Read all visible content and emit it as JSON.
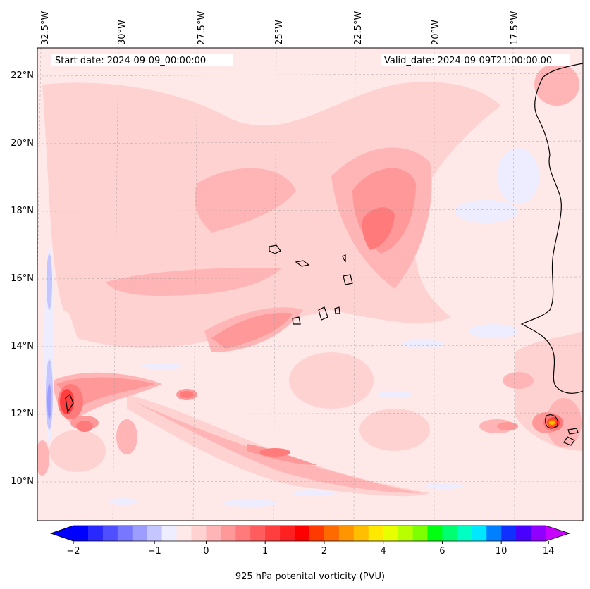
{
  "map": {
    "start_label": "Start date: 2024-09-09_00:00:00",
    "valid_label": "Valid_date: 2024-09-09T21:00:00.00",
    "lon_labels": [
      "32.5°W",
      "30°W",
      "27.5°W",
      "25°W",
      "22.5°W",
      "20°W",
      "17.5°W"
    ],
    "lat_labels": [
      "22°N",
      "20°N",
      "18°N",
      "16°N",
      "14°N",
      "12°N",
      "10°N"
    ],
    "colorbar": {
      "title": "925 hPa potenital vorticity (PVU)",
      "tick_labels": [
        "−2",
        "−1",
        "0",
        "1",
        "2",
        "4",
        "6",
        "10",
        "14"
      ],
      "colors": [
        "#0000ff",
        "#2828ff",
        "#4f4fff",
        "#7777ff",
        "#9d9dff",
        "#c5c5ff",
        "#ededff",
        "#ffe8e8",
        "#ffd2d2",
        "#ffb5b5",
        "#ff9999",
        "#ff7b7b",
        "#ff5d5d",
        "#ff3f3f",
        "#ff2121",
        "#ff0000",
        "#ff3a00",
        "#ff6a00",
        "#ff9500",
        "#ffbf00",
        "#ffe900",
        "#e8ff00",
        "#b8ff00",
        "#7dff00",
        "#00ff10",
        "#00ff70",
        "#00ffc0",
        "#00e8ff",
        "#0080ff",
        "#1030ff",
        "#4a00ff",
        "#9000ff"
      ],
      "extend_low": "#0000ff",
      "extend_high": "#c800ff"
    }
  }
}
